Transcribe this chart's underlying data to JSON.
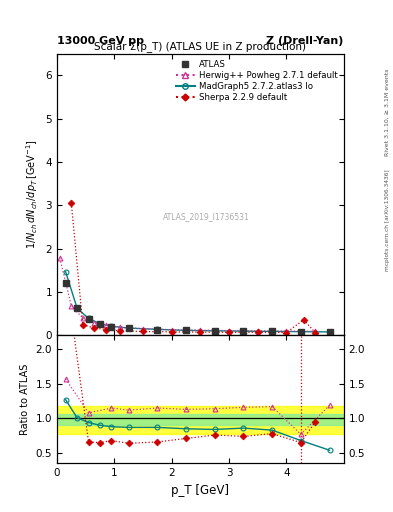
{
  "title_left": "13000 GeV pp",
  "title_right": "Z (Drell-Yan)",
  "plot_title": "Scalar Σ(p_T) (ATLAS UE in Z production)",
  "ylabel_main": "1/N_{ch} dN_{ch}/dp_T [GeV]",
  "ylabel_ratio": "Ratio to ATLAS",
  "xlabel": "p_T [GeV]",
  "right_label_top": "Rivet 3.1.10, ≥ 3.1M events",
  "right_label_bot": "mcplots.cern.ch [arXiv:1306.3436]",
  "watermark": "ATLAS_2019_I1736531",
  "atlas_x": [
    0.15,
    0.35,
    0.55,
    0.75,
    0.95,
    1.25,
    1.75,
    2.25,
    2.75,
    3.25,
    3.75,
    4.25,
    4.75
  ],
  "atlas_y": [
    1.22,
    0.63,
    0.37,
    0.26,
    0.2,
    0.165,
    0.135,
    0.115,
    0.105,
    0.095,
    0.09,
    0.085,
    0.08
  ],
  "atlas_yerr": [
    0.04,
    0.015,
    0.01,
    0.008,
    0.006,
    0.005,
    0.004,
    0.004,
    0.003,
    0.003,
    0.003,
    0.003,
    0.003
  ],
  "herwig_x": [
    0.05,
    0.25,
    0.45,
    0.65,
    0.85,
    1.1,
    1.5,
    2.0,
    2.5,
    3.0,
    3.5,
    4.0,
    4.5
  ],
  "herwig_y": [
    1.78,
    0.68,
    0.4,
    0.285,
    0.23,
    0.185,
    0.155,
    0.13,
    0.12,
    0.11,
    0.105,
    0.1,
    0.095
  ],
  "madgraph_x": [
    0.15,
    0.35,
    0.55,
    0.75,
    0.95,
    1.25,
    1.75,
    2.25,
    2.75,
    3.25,
    3.75,
    4.25,
    4.75
  ],
  "madgraph_y": [
    1.47,
    0.63,
    0.39,
    0.27,
    0.21,
    0.168,
    0.138,
    0.115,
    0.105,
    0.098,
    0.092,
    0.085,
    0.08
  ],
  "sherpa_x": [
    0.25,
    0.45,
    0.65,
    0.85,
    1.1,
    1.5,
    2.0,
    2.5,
    3.0,
    3.5,
    4.0,
    4.3,
    4.5
  ],
  "sherpa_y": [
    3.05,
    0.245,
    0.17,
    0.135,
    0.105,
    0.09,
    0.08,
    0.075,
    0.07,
    0.07,
    0.065,
    0.36,
    0.065
  ],
  "herwig_ratio_x": [
    0.15,
    0.55,
    0.95,
    1.25,
    1.75,
    2.25,
    2.75,
    3.25,
    3.75,
    4.25,
    4.75
  ],
  "herwig_ratio_y": [
    1.57,
    1.08,
    1.15,
    1.12,
    1.15,
    1.13,
    1.14,
    1.16,
    1.17,
    0.77,
    1.19
  ],
  "madgraph_ratio_x": [
    0.15,
    0.35,
    0.55,
    0.75,
    0.95,
    1.25,
    1.75,
    2.25,
    2.75,
    3.25,
    3.75,
    4.25,
    4.75
  ],
  "madgraph_ratio_y": [
    1.27,
    1.01,
    0.94,
    0.9,
    0.88,
    0.87,
    0.87,
    0.85,
    0.84,
    0.86,
    0.83,
    0.68,
    0.54
  ],
  "sherpa_ratio_x": [
    0.25,
    0.55,
    0.75,
    0.95,
    1.25,
    1.75,
    2.25,
    2.75,
    3.25,
    3.75,
    4.25,
    4.5
  ],
  "sherpa_ratio_y": [
    2.5,
    0.66,
    0.65,
    0.68,
    0.64,
    0.66,
    0.71,
    0.76,
    0.74,
    0.78,
    0.65,
    0.95
  ],
  "band_yellow_low": 0.77,
  "band_yellow_high": 1.18,
  "band_green_low": 0.9,
  "band_green_high": 1.07,
  "atlas_color": "#333333",
  "herwig_color": "#cc3399",
  "madgraph_color": "#008080",
  "sherpa_color": "#cc0000",
  "xlim": [
    0,
    5.0
  ],
  "ylim_main": [
    0,
    6.5
  ],
  "ylim_ratio": [
    0.35,
    2.2
  ],
  "yticks_main": [
    0,
    1,
    2,
    3,
    4,
    5,
    6
  ],
  "yticks_ratio": [
    0.5,
    1.0,
    1.5,
    2.0
  ],
  "vline_x": 4.25
}
